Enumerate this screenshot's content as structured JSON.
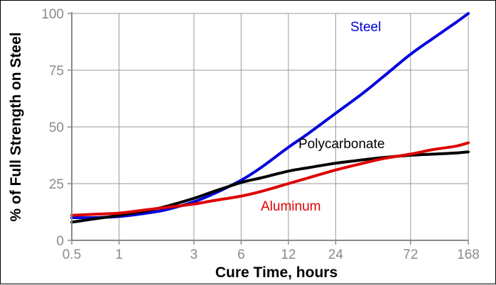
{
  "chart_data": {
    "type": "line",
    "xlabel": "Cure Time, hours",
    "ylabel": "% of Full Strength on Steel",
    "x_scale": "log",
    "x_ticks": [
      0.5,
      1,
      3,
      6,
      12,
      24,
      72,
      168
    ],
    "x_tick_labels": [
      "0.5",
      "1",
      "3",
      "6",
      "12",
      "24",
      "72",
      "168"
    ],
    "y_ticks": [
      0,
      25,
      50,
      75,
      100
    ],
    "y_tick_labels": [
      "0",
      "25",
      "50",
      "75",
      "100"
    ],
    "xlim": [
      0.5,
      168
    ],
    "ylim": [
      0,
      100
    ],
    "grid": true,
    "series": [
      {
        "name": "Steel",
        "color": "#0000dd",
        "x": [
          0.5,
          0.7,
          1,
          1.5,
          2,
          3,
          4,
          6,
          8,
          12,
          16,
          24,
          36,
          48,
          72,
          100,
          140,
          168
        ],
        "y": [
          10,
          10,
          10.5,
          12,
          13.5,
          17,
          20.5,
          26.5,
          32,
          41,
          47,
          56,
          65,
          72,
          82,
          89,
          96,
          100
        ]
      },
      {
        "name": "Polycarbonate",
        "color": "#000000",
        "x": [
          0.5,
          0.7,
          1,
          1.5,
          2,
          3,
          4,
          6,
          8,
          12,
          16,
          24,
          36,
          48,
          72,
          100,
          140,
          168
        ],
        "y": [
          8,
          9.5,
          11,
          13,
          15,
          18.5,
          21.5,
          25.5,
          27.5,
          30.5,
          32,
          34,
          35.5,
          36.5,
          37.5,
          38,
          38.5,
          39
        ]
      },
      {
        "name": "Aluminum",
        "color": "#dd0000",
        "x": [
          0.5,
          0.7,
          1,
          1.5,
          2,
          3,
          4,
          6,
          8,
          12,
          16,
          24,
          36,
          48,
          72,
          100,
          140,
          168
        ],
        "y": [
          11,
          11.5,
          12,
          13.5,
          14.5,
          16,
          17.5,
          19.5,
          21.5,
          25,
          27.5,
          31,
          34,
          36,
          38,
          40,
          41.5,
          43
        ]
      }
    ]
  }
}
